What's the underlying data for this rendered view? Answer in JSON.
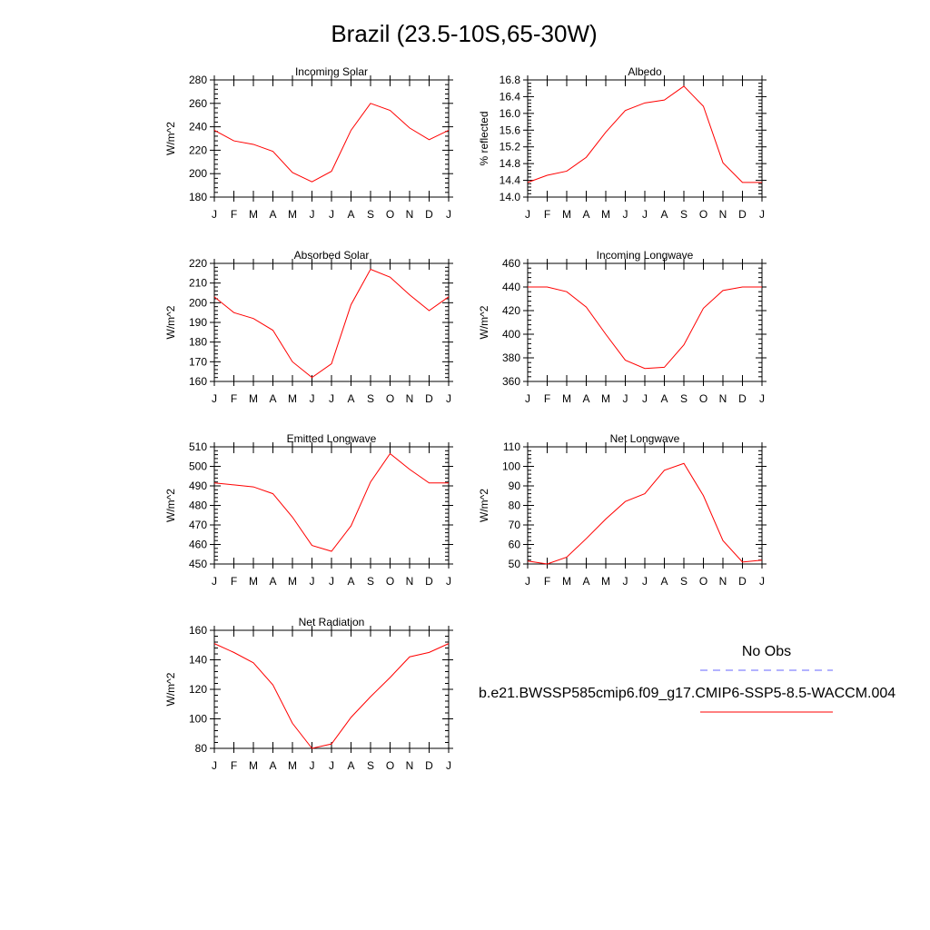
{
  "figure": {
    "title": "Brazil (23.5-10S,65-30W)"
  },
  "legend": {
    "obs_label": "No Obs",
    "model_label": "b.e21.BWSSP585cmip6.f09_g17.CMIP6-SSP5-8.5-WACCM.004",
    "obs_color": "#6666ff",
    "model_color": "#ff0000"
  },
  "chart_data": [
    {
      "type": "line",
      "title": "Incoming Solar",
      "ylabel": "W/m^2",
      "ylim": [
        180,
        280
      ],
      "yticks": [
        180,
        200,
        220,
        240,
        260,
        280
      ],
      "yticklabels": [
        "180",
        "200",
        "220",
        "240",
        "260",
        "280"
      ],
      "categories": [
        "J",
        "F",
        "M",
        "A",
        "M",
        "J",
        "J",
        "A",
        "S",
        "O",
        "N",
        "D",
        "J"
      ],
      "values": [
        237,
        228,
        225,
        219,
        201,
        193,
        202,
        237,
        260,
        254,
        239,
        229,
        237
      ],
      "color": "#ff0000"
    },
    {
      "type": "line",
      "title": "Albedo",
      "ylabel": "% reflected",
      "ylim": [
        14.0,
        16.8
      ],
      "yticks": [
        14.0,
        14.4,
        14.8,
        15.2,
        15.6,
        16.0,
        16.4,
        16.8
      ],
      "yticklabels": [
        "14.0",
        "14.4",
        "14.8",
        "15.2",
        "15.6",
        "16.0",
        "16.4",
        "16.8"
      ],
      "categories": [
        "J",
        "F",
        "M",
        "A",
        "M",
        "J",
        "J",
        "A",
        "S",
        "O",
        "N",
        "D",
        "J"
      ],
      "values": [
        14.35,
        14.52,
        14.62,
        14.95,
        15.55,
        16.07,
        16.25,
        16.32,
        16.65,
        16.17,
        14.82,
        14.35,
        14.35
      ],
      "color": "#ff0000"
    },
    {
      "type": "line",
      "title": "Absorbed Solar",
      "ylabel": "W/m^2",
      "ylim": [
        160,
        220
      ],
      "yticks": [
        160,
        170,
        180,
        190,
        200,
        210,
        220
      ],
      "yticklabels": [
        "160",
        "170",
        "180",
        "190",
        "200",
        "210",
        "220"
      ],
      "categories": [
        "J",
        "F",
        "M",
        "A",
        "M",
        "J",
        "J",
        "A",
        "S",
        "O",
        "N",
        "D",
        "J"
      ],
      "values": [
        203,
        195,
        192,
        186,
        170,
        162,
        169,
        199,
        217,
        213,
        204,
        196,
        203
      ],
      "color": "#ff0000"
    },
    {
      "type": "line",
      "title": "Incoming Longwave",
      "ylabel": "W/m^2",
      "ylim": [
        360,
        460
      ],
      "yticks": [
        360,
        380,
        400,
        420,
        440,
        460
      ],
      "yticklabels": [
        "360",
        "380",
        "400",
        "420",
        "440",
        "460"
      ],
      "categories": [
        "J",
        "F",
        "M",
        "A",
        "M",
        "J",
        "J",
        "A",
        "S",
        "O",
        "N",
        "D",
        "J"
      ],
      "values": [
        440,
        440,
        436,
        423,
        400,
        378,
        371,
        372,
        391,
        422,
        437,
        440,
        440
      ],
      "color": "#ff0000"
    },
    {
      "type": "line",
      "title": "Emitted Longwave",
      "ylabel": "W/m^2",
      "ylim": [
        450,
        510
      ],
      "yticks": [
        450,
        460,
        470,
        480,
        490,
        500,
        510
      ],
      "yticklabels": [
        "450",
        "460",
        "470",
        "480",
        "490",
        "500",
        "510"
      ],
      "categories": [
        "J",
        "F",
        "M",
        "A",
        "M",
        "J",
        "J",
        "A",
        "S",
        "O",
        "N",
        "D",
        "J"
      ],
      "values": [
        491.5,
        490.5,
        489.5,
        486,
        474,
        459.5,
        456.5,
        469.5,
        492,
        506.5,
        498.5,
        491.5,
        491.5
      ],
      "color": "#ff0000"
    },
    {
      "type": "line",
      "title": "Net Longwave",
      "ylabel": "W/m^2",
      "ylim": [
        50,
        110
      ],
      "yticks": [
        50,
        60,
        70,
        80,
        90,
        100,
        110
      ],
      "yticklabels": [
        "50",
        "60",
        "70",
        "80",
        "90",
        "100",
        "110"
      ],
      "categories": [
        "J",
        "F",
        "M",
        "A",
        "M",
        "J",
        "J",
        "A",
        "S",
        "O",
        "N",
        "D",
        "J"
      ],
      "values": [
        51.5,
        50,
        53.5,
        63,
        73,
        82,
        86,
        98,
        101.5,
        85,
        62,
        51,
        52
      ],
      "color": "#ff0000"
    },
    {
      "type": "line",
      "title": "Net Radiation",
      "ylabel": "W/m^2",
      "ylim": [
        80,
        160
      ],
      "yticks": [
        80,
        100,
        120,
        140,
        160
      ],
      "yticklabels": [
        "80",
        "100",
        "120",
        "140",
        "160"
      ],
      "categories": [
        "J",
        "F",
        "M",
        "A",
        "M",
        "J",
        "J",
        "A",
        "S",
        "O",
        "N",
        "D",
        "J"
      ],
      "values": [
        151,
        145,
        138,
        123,
        97,
        80,
        83,
        101,
        115,
        128,
        142,
        145,
        151
      ],
      "color": "#ff0000"
    }
  ]
}
